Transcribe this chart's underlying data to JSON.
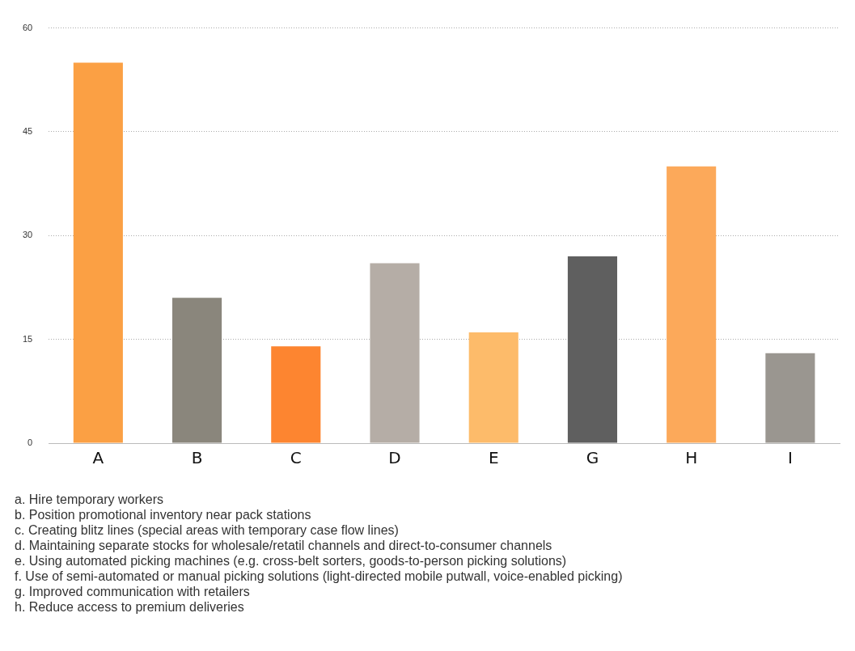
{
  "chart_data": {
    "type": "bar",
    "categories": [
      "A",
      "B",
      "C",
      "D",
      "E",
      "G",
      "H",
      "I"
    ],
    "values": [
      55,
      21,
      14,
      26,
      16,
      27,
      40,
      13
    ],
    "colors": [
      "#fba044",
      "#8a867c",
      "#fd8530",
      "#b5ada6",
      "#fdbb6a",
      "#5f5f5f",
      "#fca95a",
      "#9a9690"
    ],
    "ylim": [
      0,
      60
    ],
    "yticks": [
      0,
      15,
      30,
      45,
      60
    ],
    "grid": "y",
    "legend": false,
    "annotations": [
      "a. Hire temporary workers",
      "b. Position promotional inventory near pack stations",
      "c. Creating blitz lines (special areas with temporary case flow lines)",
      "d. Maintaining separate stocks for wholesale/retatil channels and direct-to-consumer channels",
      "e. Using automated picking machines (e.g. cross-belt sorters, goods-to-person picking solutions)",
      "f. Use of semi-automated or manual picking solutions (light-directed mobile putwall, voice-enabled picking)",
      "g. Improved communication with retailers",
      "h. Reduce access to premium deliveries"
    ]
  }
}
